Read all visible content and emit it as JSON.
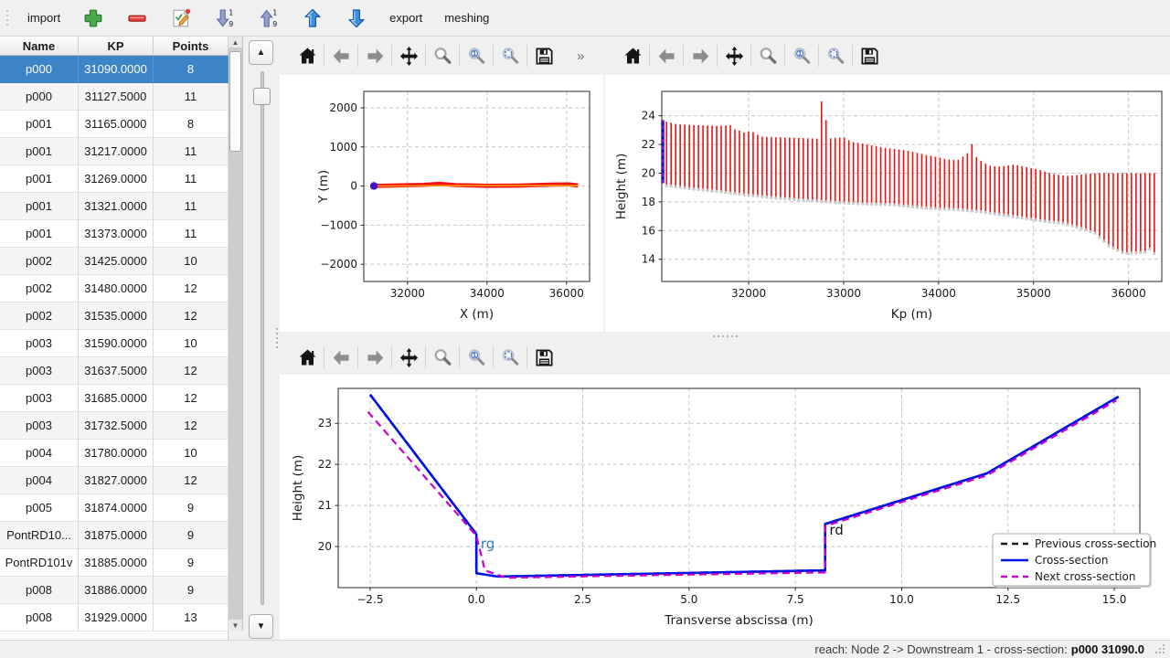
{
  "top_toolbar": {
    "items": [
      {
        "kind": "label",
        "name": "import-button",
        "label": "import"
      },
      {
        "kind": "icon",
        "name": "add-button",
        "icon": "plus-icon"
      },
      {
        "kind": "icon",
        "name": "remove-button",
        "icon": "minus-icon"
      },
      {
        "kind": "icon",
        "name": "edit-button",
        "icon": "edit-icon"
      },
      {
        "kind": "icon",
        "name": "sort-ascending-button",
        "icon": "sort-down-icon"
      },
      {
        "kind": "icon",
        "name": "sort-descending-button",
        "icon": "sort-up-icon"
      },
      {
        "kind": "icon",
        "name": "move-up-button",
        "icon": "arrow-up-icon"
      },
      {
        "kind": "icon",
        "name": "move-down-button",
        "icon": "arrow-down-icon"
      },
      {
        "kind": "label",
        "name": "export-button",
        "label": "export"
      },
      {
        "kind": "label",
        "name": "meshing-button",
        "label": "meshing"
      }
    ]
  },
  "table": {
    "columns": [
      "Name",
      "KP",
      "Points"
    ],
    "selected_index": 0,
    "rows": [
      [
        "p000",
        "31090.0000",
        "8"
      ],
      [
        "p000",
        "31127.5000",
        "11"
      ],
      [
        "p001",
        "31165.0000",
        "8"
      ],
      [
        "p001",
        "31217.0000",
        "11"
      ],
      [
        "p001",
        "31269.0000",
        "11"
      ],
      [
        "p001",
        "31321.0000",
        "11"
      ],
      [
        "p001",
        "31373.0000",
        "11"
      ],
      [
        "p002",
        "31425.0000",
        "10"
      ],
      [
        "p002",
        "31480.0000",
        "12"
      ],
      [
        "p002",
        "31535.0000",
        "12"
      ],
      [
        "p003",
        "31590.0000",
        "10"
      ],
      [
        "p003",
        "31637.5000",
        "12"
      ],
      [
        "p003",
        "31685.0000",
        "12"
      ],
      [
        "p003",
        "31732.5000",
        "12"
      ],
      [
        "p004",
        "31780.0000",
        "10"
      ],
      [
        "p004",
        "31827.0000",
        "12"
      ],
      [
        "p005",
        "31874.0000",
        "9"
      ],
      [
        "PontRD10...",
        "31875.0000",
        "9"
      ],
      [
        "PontRD101v",
        "31885.0000",
        "9"
      ],
      [
        "p008",
        "31886.0000",
        "9"
      ],
      [
        "p008",
        "31929.0000",
        "13"
      ]
    ]
  },
  "nav_toolbar": {
    "overflow_label": "»",
    "items": [
      {
        "name": "home",
        "icon": "home-icon"
      },
      {
        "name": "back",
        "icon": "back-arrow-icon"
      },
      {
        "name": "forward",
        "icon": "forward-arrow-icon"
      },
      {
        "name": "pan",
        "icon": "pan-arrows-icon"
      },
      {
        "name": "zoom",
        "icon": "zoom-magnifier-icon"
      },
      {
        "name": "zoom-one",
        "icon": "magnifier-one-icon"
      },
      {
        "name": "zoom-region",
        "icon": "magnifier-region-icon"
      },
      {
        "name": "save",
        "icon": "save-floppy-icon"
      }
    ]
  },
  "status_bar": {
    "prefix": "reach: Node 2 -> Downstream 1 - cross-section:",
    "value": "p000 31090.0"
  },
  "chart_data": [
    {
      "id": "plan-view",
      "type": "scatter",
      "xlabel": "X (m)",
      "ylabel": "Y (m)",
      "xlim": [
        30900,
        36580
      ],
      "ylim": [
        -2440,
        2420
      ],
      "xticks": [
        32000,
        34000,
        36000
      ],
      "xtick_labels": [
        "32000",
        "34000",
        "36000"
      ],
      "yticks": [
        -2000,
        -1000,
        0,
        1000,
        2000
      ],
      "ytick_labels": [
        "−2000",
        "−1000",
        "0",
        "1000",
        "2000"
      ],
      "grid": true,
      "series": [
        {
          "name": "cross-section markers",
          "type": "line",
          "color": "#f11313",
          "width": 4.6,
          "points": [
            [
              31150,
              2
            ],
            [
              32400,
              30
            ],
            [
              32800,
              55
            ],
            [
              33200,
              25
            ],
            [
              34000,
              6
            ],
            [
              34800,
              12
            ],
            [
              35600,
              35
            ],
            [
              36060,
              42
            ],
            [
              36290,
              15
            ]
          ]
        },
        {
          "name": "reach axis",
          "type": "line",
          "color": "#ff9214",
          "width": 1.7,
          "points": [
            [
              31150,
              0
            ],
            [
              33700,
              12
            ],
            [
              36290,
              10
            ]
          ]
        },
        {
          "name": "selected cross-section location",
          "type": "scatter",
          "color": "#4311d6",
          "size": 4.2,
          "points": [
            [
              31155,
              2
            ]
          ]
        }
      ]
    },
    {
      "id": "longitudinal-profile",
      "type": "bar",
      "xlabel": "Kp (m)",
      "ylabel": "Height (m)",
      "xlim": [
        31085,
        36350
      ],
      "ylim": [
        12.45,
        25.7
      ],
      "xticks": [
        32000,
        33000,
        34000,
        35000,
        36000
      ],
      "xtick_labels": [
        "32000",
        "33000",
        "34000",
        "35000",
        "36000"
      ],
      "yticks": [
        14,
        16,
        18,
        20,
        22,
        24
      ],
      "ytick_labels": [
        "14",
        "16",
        "18",
        "20",
        "22",
        "24"
      ],
      "grid": true,
      "bars": {
        "color": "#ee1111",
        "marker_color": "#c9c9c9",
        "width": 1.6,
        "start": 31135,
        "end": 36305,
        "spacing": 48,
        "top_envelope": [
          [
            31100,
            23.65
          ],
          [
            31250,
            23.4
          ],
          [
            31450,
            23.35
          ],
          [
            31700,
            23.3
          ],
          [
            31820,
            23.35
          ],
          [
            31860,
            23.0
          ],
          [
            31890,
            23.05
          ],
          [
            31930,
            22.8
          ],
          [
            31990,
            22.9
          ],
          [
            32060,
            22.85
          ],
          [
            32120,
            22.55
          ],
          [
            32300,
            22.5
          ],
          [
            32550,
            22.45
          ],
          [
            32740,
            22.4
          ],
          [
            32765,
            25.0
          ],
          [
            32800,
            25.0
          ],
          [
            32830,
            22.4
          ],
          [
            32900,
            22.45
          ],
          [
            33000,
            22.5
          ],
          [
            33080,
            22.2
          ],
          [
            33250,
            22.0
          ],
          [
            33450,
            21.75
          ],
          [
            33650,
            21.6
          ],
          [
            33850,
            21.3
          ],
          [
            34000,
            21.1
          ],
          [
            34100,
            20.95
          ],
          [
            34200,
            20.9
          ],
          [
            34300,
            21.35
          ],
          [
            34350,
            22.05
          ],
          [
            34400,
            21.1
          ],
          [
            34480,
            20.7
          ],
          [
            34550,
            20.5
          ],
          [
            34650,
            20.45
          ],
          [
            34800,
            20.6
          ],
          [
            34900,
            20.45
          ],
          [
            35050,
            20.25
          ],
          [
            35200,
            19.95
          ],
          [
            35350,
            19.8
          ],
          [
            35500,
            19.9
          ],
          [
            35650,
            20.0
          ],
          [
            36305,
            20.0
          ]
        ],
        "bottom_envelope": [
          [
            31100,
            19.25
          ],
          [
            31400,
            19.0
          ],
          [
            31700,
            18.8
          ],
          [
            32000,
            18.55
          ],
          [
            32300,
            18.35
          ],
          [
            32600,
            18.2
          ],
          [
            32900,
            18.05
          ],
          [
            33200,
            17.95
          ],
          [
            33500,
            17.9
          ],
          [
            33800,
            17.7
          ],
          [
            34000,
            17.6
          ],
          [
            34200,
            17.55
          ],
          [
            34450,
            17.4
          ],
          [
            34700,
            17.15
          ],
          [
            34900,
            16.95
          ],
          [
            35100,
            16.75
          ],
          [
            35300,
            16.6
          ],
          [
            35500,
            16.25
          ],
          [
            35650,
            15.9
          ],
          [
            35800,
            15.0
          ],
          [
            35950,
            14.5
          ],
          [
            36100,
            14.55
          ],
          [
            36200,
            14.6
          ],
          [
            36255,
            15.1
          ],
          [
            36305,
            13.2
          ]
        ]
      },
      "selected_bar": {
        "kp": 31095,
        "bottom": 19.3,
        "top": 23.7,
        "color": "#0013e6",
        "overlay_color": "#cc00cc"
      }
    },
    {
      "id": "cross-section-profile",
      "type": "line",
      "xlabel": "Transverse abscissa (m)",
      "ylabel": "Height (m)",
      "xlim": [
        -3.25,
        15.6
      ],
      "ylim": [
        19.0,
        23.85
      ],
      "xticks": [
        -2.5,
        0,
        2.5,
        5,
        7.5,
        10,
        12.5,
        15
      ],
      "xtick_labels": [
        "−2.5",
        "0.0",
        "2.5",
        "5.0",
        "7.5",
        "10.0",
        "12.5",
        "15.0"
      ],
      "yticks": [
        20,
        21,
        22,
        23
      ],
      "ytick_labels": [
        "20",
        "21",
        "22",
        "23"
      ],
      "grid": true,
      "series": [
        {
          "name": "Previous cross-section",
          "type": "line",
          "color": "#1a1a1a",
          "width": 2.6,
          "dash": [
            8,
            5
          ],
          "points": [
            [
              -2.5,
              23.7
            ],
            [
              0,
              20.3
            ],
            [
              0,
              19.35
            ],
            [
              0.5,
              19.27
            ],
            [
              8.2,
              19.42
            ],
            [
              8.2,
              20.55
            ],
            [
              12,
              21.78
            ],
            [
              15.1,
              23.65
            ]
          ]
        },
        {
          "name": "Cross-section",
          "type": "line",
          "color": "#0013e6",
          "width": 2.6,
          "points": [
            [
              -2.5,
              23.7
            ],
            [
              0,
              20.3
            ],
            [
              0,
              19.35
            ],
            [
              0.5,
              19.27
            ],
            [
              8.2,
              19.42
            ],
            [
              8.2,
              20.55
            ],
            [
              12,
              21.78
            ],
            [
              15.1,
              23.65
            ]
          ]
        },
        {
          "name": "Next cross-section",
          "type": "line",
          "color": "#cc00cc",
          "width": 2.2,
          "dash": [
            8,
            5
          ],
          "points": [
            [
              -2.55,
              23.28
            ],
            [
              0,
              20.26
            ],
            [
              0.2,
              19.42
            ],
            [
              0.7,
              19.24
            ],
            [
              4,
              19.3
            ],
            [
              8.2,
              19.37
            ],
            [
              8.2,
              20.5
            ],
            [
              12,
              21.73
            ],
            [
              15.05,
              23.56
            ]
          ]
        }
      ],
      "annotations": [
        {
          "text": "rg",
          "x": 0.1,
          "y": 20.07,
          "color": "#2e7ebc"
        },
        {
          "text": "rd",
          "x": 8.3,
          "y": 20.4,
          "color": "#111111"
        }
      ],
      "legend": {
        "position": "lower right",
        "entries": [
          "Previous cross-section",
          "Cross-section",
          "Next cross-section"
        ]
      }
    }
  ]
}
